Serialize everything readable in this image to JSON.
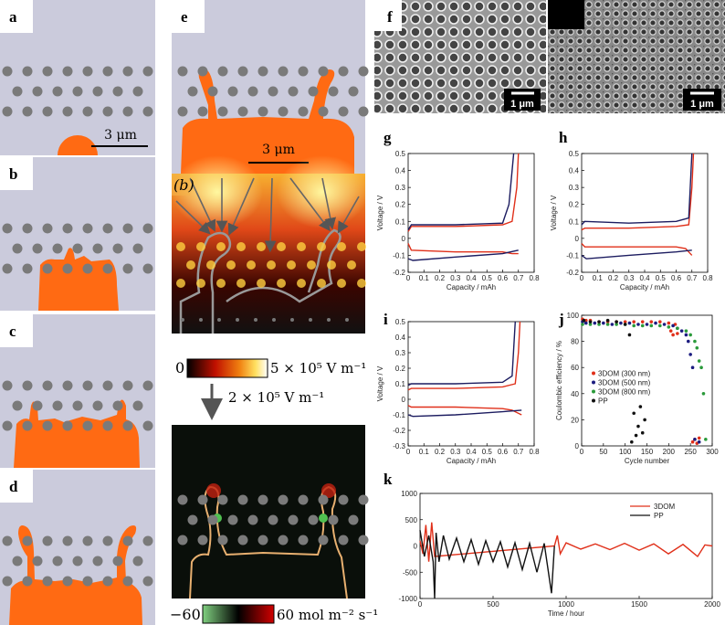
{
  "panel_labels": [
    "a",
    "b",
    "c",
    "d",
    "e",
    "f",
    "g",
    "h",
    "i",
    "j",
    "k"
  ],
  "scale_bars": [
    "3 μm",
    "3 μm",
    "1 μm",
    "1 μm"
  ],
  "field_label": "(b)",
  "colorbar_field": {
    "min": "0",
    "max": "5 × 10⁵ V m⁻¹"
  },
  "arrow_label": "2 × 10⁵ V m⁻¹",
  "colorbar_flux": {
    "min": "−60",
    "max": "60 mol m⁻² s⁻¹"
  },
  "chart_data": [
    {
      "type": "line",
      "xlabel": "Capacity / mAh",
      "ylabel": "Voltage / V",
      "xlim": [
        0,
        0.8
      ],
      "ylim": [
        -0.2,
        0.5
      ],
      "xticks": [
        0,
        0.1,
        0.2,
        0.3,
        0.4,
        0.5,
        0.6,
        0.7,
        0.8
      ],
      "yticks": [
        -0.2,
        -0.1,
        0,
        0.1,
        0.2,
        0.3,
        0.4,
        0.5
      ],
      "series": [
        {
          "color": "#e0301a",
          "x": [
            0,
            0.02,
            0.3,
            0.6,
            0.66,
            0.69,
            0.7
          ],
          "values": [
            0.04,
            0.07,
            0.07,
            0.08,
            0.1,
            0.3,
            0.5
          ]
        },
        {
          "color": "#e0301a",
          "x": [
            0,
            0.02,
            0.3,
            0.6,
            0.66,
            0.7
          ],
          "values": [
            -0.03,
            -0.07,
            -0.08,
            -0.08,
            -0.09,
            -0.09
          ]
        },
        {
          "color": "#1c1c60",
          "x": [
            0,
            0.02,
            0.3,
            0.6,
            0.64,
            0.67
          ],
          "values": [
            0.05,
            0.08,
            0.08,
            0.09,
            0.2,
            0.5
          ]
        },
        {
          "color": "#1c1c60",
          "x": [
            0,
            0.03,
            0.3,
            0.6,
            0.7
          ],
          "values": [
            -0.12,
            -0.13,
            -0.11,
            -0.09,
            -0.07
          ]
        }
      ]
    },
    {
      "type": "line",
      "xlabel": "Capacity / mAh",
      "ylabel": "Voltage / V",
      "xlim": [
        0,
        0.8
      ],
      "ylim": [
        -0.2,
        0.5
      ],
      "xticks": [
        0,
        0.1,
        0.2,
        0.3,
        0.4,
        0.5,
        0.6,
        0.7,
        0.8
      ],
      "yticks": [
        -0.2,
        -0.1,
        0,
        0.1,
        0.2,
        0.3,
        0.4,
        0.5
      ],
      "series": [
        {
          "color": "#e0301a",
          "x": [
            0,
            0.02,
            0.3,
            0.6,
            0.68,
            0.7,
            0.71
          ],
          "values": [
            0.05,
            0.06,
            0.06,
            0.07,
            0.08,
            0.3,
            0.5
          ]
        },
        {
          "color": "#e0301a",
          "x": [
            0,
            0.02,
            0.3,
            0.6,
            0.66,
            0.7
          ],
          "values": [
            -0.03,
            -0.05,
            -0.05,
            -0.05,
            -0.06,
            -0.1
          ]
        },
        {
          "color": "#1c1c60",
          "x": [
            0,
            0.02,
            0.3,
            0.6,
            0.68,
            0.7
          ],
          "values": [
            0.08,
            0.1,
            0.09,
            0.1,
            0.12,
            0.5
          ]
        },
        {
          "color": "#1c1c60",
          "x": [
            0,
            0.03,
            0.3,
            0.6,
            0.7
          ],
          "values": [
            -0.1,
            -0.12,
            -0.1,
            -0.08,
            -0.07
          ]
        }
      ]
    },
    {
      "type": "line",
      "xlabel": "Capacity / mAh",
      "ylabel": "Voltage / V",
      "xlim": [
        0,
        0.8
      ],
      "ylim": [
        -0.3,
        0.5
      ],
      "xticks": [
        0,
        0.1,
        0.2,
        0.3,
        0.4,
        0.5,
        0.6,
        0.7,
        0.8
      ],
      "yticks": [
        -0.3,
        -0.2,
        -0.1,
        0,
        0.1,
        0.2,
        0.3,
        0.4,
        0.5
      ],
      "series": [
        {
          "color": "#e0301a",
          "x": [
            0,
            0.02,
            0.3,
            0.6,
            0.68,
            0.7,
            0.71
          ],
          "values": [
            0.06,
            0.07,
            0.07,
            0.08,
            0.1,
            0.3,
            0.5
          ]
        },
        {
          "color": "#e0301a",
          "x": [
            0,
            0.02,
            0.3,
            0.6,
            0.66,
            0.72
          ],
          "values": [
            -0.04,
            -0.05,
            -0.05,
            -0.06,
            -0.07,
            -0.1
          ]
        },
        {
          "color": "#1c1c60",
          "x": [
            0,
            0.02,
            0.3,
            0.6,
            0.66,
            0.68
          ],
          "values": [
            0.09,
            0.1,
            0.1,
            0.11,
            0.15,
            0.5
          ]
        },
        {
          "color": "#1c1c60",
          "x": [
            0,
            0.03,
            0.3,
            0.6,
            0.72
          ],
          "values": [
            -0.1,
            -0.11,
            -0.1,
            -0.08,
            -0.07
          ]
        }
      ]
    },
    {
      "type": "scatter",
      "xlabel": "Cycle number",
      "ylabel": "Coulombic efficiency / %",
      "xlim": [
        0,
        300
      ],
      "ylim": [
        0,
        100
      ],
      "xticks": [
        0,
        50,
        100,
        150,
        200,
        250,
        300
      ],
      "yticks": [
        0,
        20,
        40,
        60,
        80,
        100
      ],
      "legend": "center-left",
      "series": [
        {
          "name": "3DOM (300 nm)",
          "color": "#e0301a",
          "x": [
            2,
            10,
            20,
            40,
            60,
            80,
            100,
            120,
            140,
            160,
            180,
            200,
            205,
            210,
            215,
            220,
            255,
            260,
            265,
            270
          ],
          "values": [
            97,
            96,
            96,
            95,
            95,
            95,
            95,
            95,
            95,
            95,
            95,
            94,
            88,
            85,
            93,
            86,
            3,
            5,
            2,
            6
          ]
        },
        {
          "name": "3DOM (500 nm)",
          "color": "#1c1c80",
          "x": [
            2,
            10,
            30,
            50,
            70,
            90,
            110,
            130,
            150,
            170,
            190,
            210,
            220,
            230,
            240,
            245,
            250,
            255,
            260,
            270
          ],
          "values": [
            95,
            94,
            94,
            94,
            93,
            94,
            94,
            93,
            93,
            94,
            93,
            92,
            90,
            88,
            85,
            80,
            70,
            60,
            5,
            3
          ]
        },
        {
          "name": "3DOM (800 nm)",
          "color": "#2a9a3a",
          "x": [
            2,
            20,
            40,
            60,
            80,
            100,
            120,
            140,
            160,
            180,
            200,
            220,
            240,
            250,
            260,
            265,
            270,
            275,
            280,
            285
          ],
          "values": [
            93,
            93,
            93,
            93,
            93,
            93,
            92,
            92,
            92,
            92,
            91,
            90,
            88,
            85,
            80,
            75,
            65,
            60,
            40,
            5
          ]
        },
        {
          "name": "PP",
          "color": "#111111",
          "x": [
            5,
            20,
            40,
            60,
            80,
            100,
            110,
            115,
            120,
            125,
            130,
            135,
            140,
            145
          ],
          "values": [
            96,
            95,
            95,
            96,
            95,
            93,
            85,
            3,
            25,
            8,
            15,
            30,
            10,
            20
          ]
        }
      ]
    },
    {
      "type": "line",
      "xlabel": "Time / hour",
      "xlim": [
        0,
        2000
      ],
      "ylim": [
        -1000,
        1000
      ],
      "xticks": [
        0,
        500,
        1000,
        1500,
        2000
      ],
      "yticks": [
        -1000,
        -500,
        0,
        500,
        1000
      ],
      "legend": "upper-right",
      "series": [
        {
          "name": "3DOM",
          "color": "#e0301a",
          "x": [
            0,
            20,
            40,
            60,
            80,
            100,
            920,
            940,
            960,
            1000,
            1100,
            1200,
            1300,
            1400,
            1500,
            1600,
            1700,
            1800,
            1900,
            1950,
            2000
          ],
          "values": [
            100,
            -150,
            400,
            -300,
            450,
            -200,
            0,
            200,
            -150,
            60,
            -60,
            40,
            -70,
            50,
            -80,
            40,
            -150,
            30,
            -200,
            20,
            0
          ]
        },
        {
          "name": "PP",
          "color": "#111111",
          "x": [
            0,
            30,
            60,
            90,
            100,
            110,
            130,
            160,
            200,
            250,
            300,
            350,
            400,
            450,
            500,
            550,
            600,
            650,
            700,
            750,
            800,
            850,
            900,
            920
          ],
          "values": [
            300,
            -200,
            200,
            -300,
            -1000,
            250,
            -300,
            200,
            -250,
            150,
            -300,
            120,
            -350,
            100,
            -300,
            80,
            -400,
            60,
            -450,
            50,
            -500,
            50,
            -900,
            0
          ]
        }
      ]
    }
  ]
}
